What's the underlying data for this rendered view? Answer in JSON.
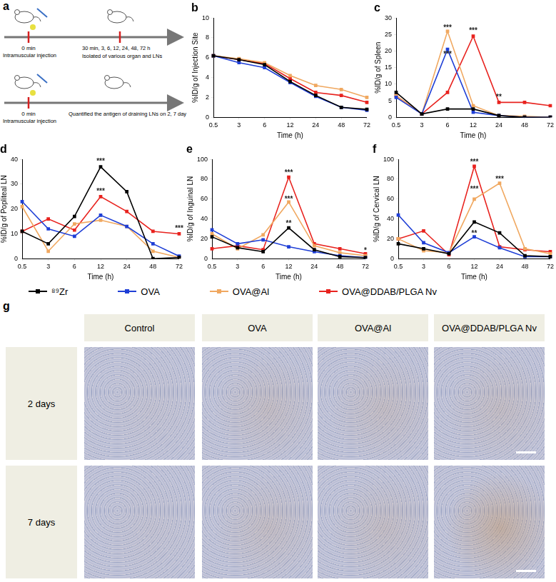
{
  "chart_data": [
    {
      "type": "line",
      "title": "b",
      "x_label": "Time (h)",
      "y_label": "%ID/g of Injection Site",
      "categories": [
        0.5,
        3,
        6,
        12,
        24,
        48,
        72
      ],
      "ylim": [
        0,
        10
      ],
      "yticks": [
        0,
        2,
        4,
        6,
        8,
        10
      ],
      "grid": false,
      "marker": "square",
      "series": [
        {
          "name": "⁸⁹Zr",
          "color": "#000000",
          "values": [
            6.2,
            5.8,
            5.3,
            3.6,
            2.2,
            1.0,
            0.8
          ]
        },
        {
          "name": "OVA",
          "color": "#1f3fd6",
          "values": [
            6.2,
            5.5,
            5.0,
            3.5,
            2.1,
            1.0,
            0.7
          ]
        },
        {
          "name": "OVA@Al",
          "color": "#f0a860",
          "values": [
            6.2,
            5.9,
            5.5,
            4.2,
            3.2,
            2.8,
            2.0
          ]
        },
        {
          "name": "OVA@DDAB/PLGA Nv",
          "color": "#e8231f",
          "values": [
            6.2,
            5.8,
            5.4,
            3.9,
            2.5,
            2.2,
            1.5
          ]
        }
      ],
      "annotations": []
    },
    {
      "type": "line",
      "title": "c",
      "x_label": "Time (h)",
      "y_label": "%ID/g of Spleen",
      "categories": [
        0.5,
        3,
        6,
        12,
        24,
        48,
        72
      ],
      "ylim": [
        0,
        30
      ],
      "yticks": [
        0,
        5,
        10,
        15,
        20,
        25,
        30
      ],
      "grid": false,
      "marker": "square",
      "series": [
        {
          "name": "⁸⁹Zr",
          "color": "#000000",
          "values": [
            7.5,
            1,
            2.5,
            2.5,
            0.5,
            0,
            0
          ]
        },
        {
          "name": "OVA",
          "color": "#1f3fd6",
          "values": [
            6,
            1,
            20.5,
            1.5,
            0.5,
            0,
            0
          ]
        },
        {
          "name": "OVA@Al",
          "color": "#f0a860",
          "values": [
            6.5,
            1,
            26,
            3.5,
            0.5,
            0.3,
            0
          ]
        },
        {
          "name": "OVA@DDAB/PLGA Nv",
          "color": "#e8231f",
          "values": [
            6.5,
            1,
            7.5,
            24.5,
            4.5,
            4.5,
            3.5
          ]
        }
      ],
      "annotations": [
        {
          "x": 6,
          "y": 27,
          "text": "***"
        },
        {
          "x": 6,
          "y": 19,
          "text": "***"
        },
        {
          "x": 12,
          "y": 26,
          "text": "***"
        },
        {
          "x": 24,
          "y": 6,
          "text": "**"
        }
      ]
    },
    {
      "type": "line",
      "title": "d",
      "x_label": "Time (h)",
      "y_label": "%ID/g of Popliteal LN",
      "categories": [
        0.5,
        3,
        6,
        12,
        24,
        48,
        72
      ],
      "ylim": [
        0,
        40
      ],
      "yticks": [
        0,
        10,
        20,
        30,
        40
      ],
      "grid": false,
      "marker": "square",
      "series": [
        {
          "name": "⁸⁹Zr",
          "color": "#000000",
          "values": [
            11,
            6,
            17,
            37,
            27,
            0,
            0.5
          ]
        },
        {
          "name": "OVA",
          "color": "#1f3fd6",
          "values": [
            23,
            12,
            9,
            17.5,
            13,
            6,
            1
          ]
        },
        {
          "name": "OVA@Al",
          "color": "#f0a860",
          "values": [
            21,
            3,
            14,
            15.5,
            13,
            3,
            0.5
          ]
        },
        {
          "name": "OVA@DDAB/PLGA Nv",
          "color": "#e8231f",
          "values": [
            11,
            16,
            11.5,
            25,
            19,
            11,
            10
          ]
        }
      ],
      "annotations": [
        {
          "x": 12,
          "y": 39,
          "text": "***"
        },
        {
          "x": 12,
          "y": 27,
          "text": "***"
        },
        {
          "x": 72,
          "y": 12,
          "text": "***"
        }
      ]
    },
    {
      "type": "line",
      "title": "e",
      "x_label": "Time (h)",
      "y_label": "%ID/g of Inguinal LN",
      "categories": [
        0.5,
        3,
        6,
        12,
        24,
        48,
        72
      ],
      "ylim": [
        0,
        100
      ],
      "yticks": [
        0,
        20,
        40,
        60,
        80,
        100
      ],
      "grid": false,
      "marker": "square",
      "series": [
        {
          "name": "⁸⁹Zr",
          "color": "#000000",
          "values": [
            22,
            11,
            7,
            31,
            9,
            2,
            1
          ]
        },
        {
          "name": "OVA",
          "color": "#1f3fd6",
          "values": [
            29,
            15,
            19,
            12,
            7,
            3,
            1
          ]
        },
        {
          "name": "OVA@Al",
          "color": "#f0a860",
          "values": [
            25,
            10,
            24,
            57,
            13,
            6,
            3
          ]
        },
        {
          "name": "OVA@DDAB/PLGA Nv",
          "color": "#e8231f",
          "values": [
            10,
            13,
            9,
            82,
            15,
            10,
            5
          ]
        }
      ],
      "annotations": [
        {
          "x": 12,
          "y": 86,
          "text": "***"
        },
        {
          "x": 12,
          "y": 60,
          "text": "***"
        },
        {
          "x": 12,
          "y": 35,
          "text": "**"
        },
        {
          "x": 72,
          "y": 8,
          "text": "*"
        }
      ]
    },
    {
      "type": "line",
      "title": "f",
      "x_label": "Time (h)",
      "y_label": "%ID/g of Cervical LN",
      "categories": [
        0.5,
        3,
        6,
        12,
        24,
        48,
        72
      ],
      "ylim": [
        0,
        100
      ],
      "yticks": [
        0,
        20,
        40,
        60,
        80,
        100
      ],
      "grid": false,
      "marker": "square",
      "series": [
        {
          "name": "⁸⁹Zr",
          "color": "#000000",
          "values": [
            15,
            10,
            5,
            37,
            26,
            3,
            2
          ]
        },
        {
          "name": "OVA",
          "color": "#1f3fd6",
          "values": [
            44,
            16,
            6,
            22,
            11,
            2,
            2
          ]
        },
        {
          "name": "OVA@Al",
          "color": "#f0a860",
          "values": [
            20,
            8,
            6,
            60,
            76,
            10,
            5
          ]
        },
        {
          "name": "OVA@DDAB/PLGA Nv",
          "color": "#e8231f",
          "values": [
            20,
            28,
            4,
            93,
            12,
            9,
            7
          ]
        }
      ],
      "annotations": [
        {
          "x": 12,
          "y": 97,
          "text": "***"
        },
        {
          "x": 12,
          "y": 70,
          "text": "***"
        },
        {
          "x": 12,
          "y": 25,
          "text": "**"
        },
        {
          "x": 24,
          "y": 80,
          "text": "***"
        }
      ]
    }
  ],
  "schematic": {
    "label": "a",
    "rows": [
      {
        "start_time": "0 min",
        "start_event": "Intramuscular injection",
        "end_lines": [
          "30 min, 3, 6, 12, 24, 48,  72 h",
          "Isolated of various organ and LNs"
        ]
      },
      {
        "start_time": "0 min",
        "start_event": "Intramuscular injection",
        "end_lines": [
          "Quantified the antigen of draining LNs on 2, 7 day"
        ]
      }
    ]
  },
  "micrographs": {
    "label": "g",
    "columns": [
      "Control",
      "OVA",
      "OVA@Al",
      "OVA@DDAB/PLGA Nv"
    ],
    "rows": [
      "2 days",
      "7 days"
    ]
  }
}
